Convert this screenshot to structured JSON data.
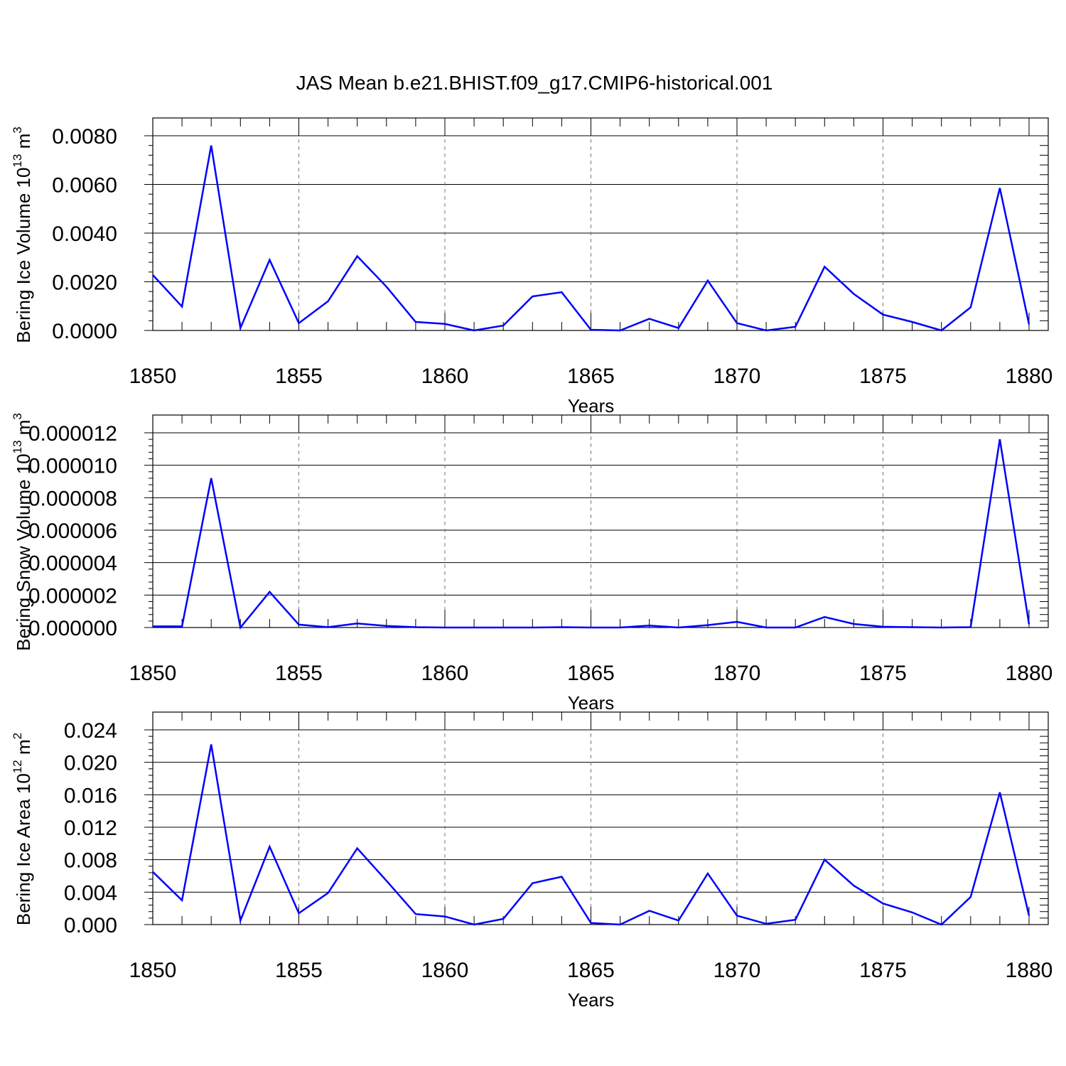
{
  "title": "JAS Mean b.e21.BHIST.f09_g17.CMIP6-historical.001",
  "colors": {
    "series": "#0000ff",
    "axis": "#000000",
    "grid": "#777777"
  },
  "chart_data": [
    {
      "type": "line",
      "ylabel": "Bering Ice Volume 10",
      "ylabel_exp": "13",
      "ylabel_unit": " m",
      "ylabel_unit_exp": "3",
      "xlabel": "Years",
      "xlim": [
        1850,
        1880
      ],
      "ylim": [
        0,
        0.008
      ],
      "ytick_values": [
        0,
        0.002,
        0.004,
        0.006,
        0.008
      ],
      "ytick_labels": [
        "0.0000",
        "0.0020",
        "0.0040",
        "0.0060",
        "0.0080"
      ],
      "xtick_values": [
        1850,
        1855,
        1860,
        1865,
        1870,
        1875,
        1880
      ],
      "xtick_labels": [
        "1850",
        "1855",
        "1860",
        "1865",
        "1870",
        "1875",
        "1880"
      ],
      "grid": "vertical dashed at major x ticks",
      "x": [
        1850,
        1851,
        1852,
        1853,
        1854,
        1855,
        1856,
        1857,
        1858,
        1859,
        1860,
        1861,
        1862,
        1863,
        1864,
        1865,
        1866,
        1867,
        1868,
        1869,
        1870,
        1871,
        1872,
        1873,
        1874,
        1875,
        1876,
        1877,
        1878,
        1879,
        1880
      ],
      "y": [
        0.00228,
        0.00098,
        0.0076,
        0.0001,
        0.0029,
        0.0003,
        0.0012,
        0.00305,
        0.0018,
        0.00035,
        0.00027,
        0.0,
        0.0002,
        0.0014,
        0.00157,
        3e-05,
        0.0,
        0.00048,
        0.0001,
        0.00205,
        0.0003,
        0.0,
        0.00015,
        0.00262,
        0.0015,
        0.00065,
        0.00035,
        0.0,
        0.00095,
        0.00585,
        0.00025
      ]
    },
    {
      "type": "line",
      "ylabel": "Bering Snow Volume 10",
      "ylabel_exp": "13",
      "ylabel_unit": " m",
      "ylabel_unit_exp": "3",
      "xlabel": "Years",
      "xlim": [
        1850,
        1880
      ],
      "ylim": [
        0,
        1.2e-05
      ],
      "ytick_values": [
        0,
        2e-06,
        4e-06,
        6e-06,
        8e-06,
        1e-05,
        1.2e-05
      ],
      "ytick_labels": [
        "0.000000",
        "0.000002",
        "0.000004",
        "0.000006",
        "0.000008",
        "0.000010",
        "0.000012"
      ],
      "xtick_values": [
        1850,
        1855,
        1860,
        1865,
        1870,
        1875,
        1880
      ],
      "xtick_labels": [
        "1850",
        "1855",
        "1860",
        "1865",
        "1870",
        "1875",
        "1880"
      ],
      "grid": "vertical dashed at major x ticks",
      "x": [
        1850,
        1851,
        1852,
        1853,
        1854,
        1855,
        1856,
        1857,
        1858,
        1859,
        1860,
        1861,
        1862,
        1863,
        1864,
        1865,
        1866,
        1867,
        1868,
        1869,
        1870,
        1871,
        1872,
        1873,
        1874,
        1875,
        1876,
        1877,
        1878,
        1879,
        1880
      ],
      "y": [
        7e-08,
        7e-08,
        9.2e-06,
        0.0,
        2.2e-06,
        1.8e-07,
        2e-08,
        2.5e-07,
        1e-07,
        2e-08,
        0.0,
        0.0,
        0.0,
        0.0,
        2e-08,
        0.0,
        0.0,
        1.2e-07,
        0.0,
        1.5e-07,
        3.5e-07,
        0.0,
        0.0,
        6.5e-07,
        2.2e-07,
        5e-08,
        2e-08,
        0.0,
        2e-08,
        1.16e-05,
        2e-07
      ]
    },
    {
      "type": "line",
      "ylabel": "Bering Ice Area 10",
      "ylabel_exp": "12",
      "ylabel_unit": " m",
      "ylabel_unit_exp": "2",
      "xlabel": "Years",
      "xlim": [
        1850,
        1880
      ],
      "ylim": [
        0,
        0.024
      ],
      "ytick_values": [
        0,
        0.004,
        0.008,
        0.012,
        0.016,
        0.02,
        0.024
      ],
      "ytick_labels": [
        "0.000",
        "0.004",
        "0.008",
        "0.012",
        "0.016",
        "0.020",
        "0.024"
      ],
      "xtick_values": [
        1850,
        1855,
        1860,
        1865,
        1870,
        1875,
        1880
      ],
      "xtick_labels": [
        "1850",
        "1855",
        "1860",
        "1865",
        "1870",
        "1875",
        "1880"
      ],
      "grid": "vertical dashed at major x ticks",
      "x": [
        1850,
        1851,
        1852,
        1853,
        1854,
        1855,
        1856,
        1857,
        1858,
        1859,
        1860,
        1861,
        1862,
        1863,
        1864,
        1865,
        1866,
        1867,
        1868,
        1869,
        1870,
        1871,
        1872,
        1873,
        1874,
        1875,
        1876,
        1877,
        1878,
        1879,
        1880
      ],
      "y": [
        0.0065,
        0.003,
        0.0222,
        0.0005,
        0.0096,
        0.0014,
        0.0039,
        0.0094,
        0.0054,
        0.0013,
        0.001,
        0.0,
        0.0007,
        0.0051,
        0.0059,
        0.0002,
        0.0,
        0.0017,
        0.0005,
        0.0063,
        0.0011,
        0.0001,
        0.0006,
        0.008,
        0.0048,
        0.0026,
        0.0015,
        0.0,
        0.0034,
        0.0163,
        0.0011
      ]
    }
  ]
}
